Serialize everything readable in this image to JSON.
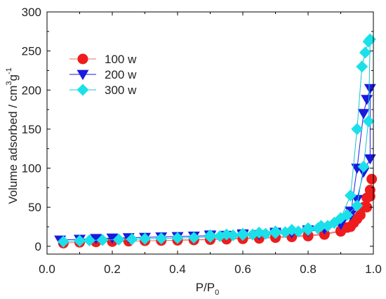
{
  "chart_data": {
    "type": "scatter",
    "xlabel": {
      "main": "P/P",
      "sub": "0"
    },
    "ylabel": {
      "main": "Volume adsorbed / cm",
      "sup1": "3",
      "mid": "g",
      "sup2": "-1"
    },
    "xlim": [
      0.0,
      1.0
    ],
    "ylim": [
      -10,
      300
    ],
    "xticks": [
      "0.0",
      "0.2",
      "0.4",
      "0.6",
      "0.8",
      "1.0"
    ],
    "yticks": [
      "0",
      "50",
      "100",
      "150",
      "200",
      "250",
      "300"
    ],
    "grid": false,
    "legend_position": "top-left",
    "series": [
      {
        "name": "100 w",
        "marker": "circle",
        "color": "#ee1c1c",
        "line_color": "#ee6b6b",
        "points": [
          [
            0.05,
            4
          ],
          [
            0.1,
            5
          ],
          [
            0.15,
            5.5
          ],
          [
            0.2,
            6
          ],
          [
            0.25,
            6.5
          ],
          [
            0.3,
            7
          ],
          [
            0.35,
            7.3
          ],
          [
            0.4,
            7.6
          ],
          [
            0.45,
            8
          ],
          [
            0.5,
            8.5
          ],
          [
            0.55,
            9
          ],
          [
            0.6,
            9.5
          ],
          [
            0.65,
            10
          ],
          [
            0.7,
            11
          ],
          [
            0.75,
            12
          ],
          [
            0.8,
            13
          ],
          [
            0.85,
            15
          ],
          [
            0.9,
            19
          ],
          [
            0.93,
            25
          ],
          [
            0.95,
            35
          ],
          [
            0.97,
            50
          ],
          [
            0.98,
            62
          ],
          [
            0.99,
            72
          ],
          [
            0.995,
            86
          ],
          [
            0.99,
            64
          ],
          [
            0.98,
            50
          ],
          [
            0.96,
            40
          ],
          [
            0.94,
            30
          ],
          [
            0.92,
            24
          ],
          [
            0.9,
            20
          ],
          [
            0.85,
            16
          ],
          [
            0.8,
            14
          ],
          [
            0.7,
            12
          ],
          [
            0.6,
            10.5
          ],
          [
            0.5,
            9
          ],
          [
            0.4,
            8
          ]
        ]
      },
      {
        "name": "200 w",
        "marker": "triangle-down",
        "color": "#1a1adf",
        "line_color": "#1a1adf",
        "points": [
          [
            0.04,
            8
          ],
          [
            0.1,
            9
          ],
          [
            0.15,
            10
          ],
          [
            0.2,
            10.5
          ],
          [
            0.25,
            11
          ],
          [
            0.3,
            11.5
          ],
          [
            0.35,
            12
          ],
          [
            0.4,
            12.5
          ],
          [
            0.45,
            13
          ],
          [
            0.5,
            13.5
          ],
          [
            0.55,
            14
          ],
          [
            0.6,
            14.5
          ],
          [
            0.65,
            15
          ],
          [
            0.7,
            16
          ],
          [
            0.75,
            17
          ],
          [
            0.8,
            19
          ],
          [
            0.85,
            22
          ],
          [
            0.9,
            28
          ],
          [
            0.93,
            40
          ],
          [
            0.95,
            100
          ],
          [
            0.97,
            170
          ],
          [
            0.98,
            188
          ],
          [
            0.99,
            202
          ],
          [
            0.99,
            112
          ],
          [
            0.97,
            95
          ],
          [
            0.95,
            60
          ],
          [
            0.93,
            45
          ],
          [
            0.9,
            30
          ],
          [
            0.85,
            24
          ],
          [
            0.8,
            21
          ],
          [
            0.7,
            18
          ],
          [
            0.6,
            16
          ],
          [
            0.5,
            14.5
          ]
        ]
      },
      {
        "name": "300 w",
        "marker": "diamond",
        "color": "#1be0ea",
        "line_color": "#16c4d4",
        "points": [
          [
            0.05,
            6
          ],
          [
            0.1,
            7
          ],
          [
            0.13,
            7.5
          ],
          [
            0.17,
            8
          ],
          [
            0.22,
            8.5
          ],
          [
            0.26,
            9
          ],
          [
            0.3,
            9.5
          ],
          [
            0.35,
            10
          ],
          [
            0.4,
            10.5
          ],
          [
            0.45,
            11
          ],
          [
            0.5,
            12
          ],
          [
            0.53,
            13
          ],
          [
            0.57,
            14
          ],
          [
            0.6,
            14.5
          ],
          [
            0.63,
            15
          ],
          [
            0.67,
            16
          ],
          [
            0.7,
            17
          ],
          [
            0.73,
            18
          ],
          [
            0.77,
            19
          ],
          [
            0.8,
            21
          ],
          [
            0.83,
            23
          ],
          [
            0.86,
            26
          ],
          [
            0.88,
            30
          ],
          [
            0.9,
            36
          ],
          [
            0.93,
            65
          ],
          [
            0.95,
            150
          ],
          [
            0.965,
            230
          ],
          [
            0.975,
            248
          ],
          [
            0.985,
            262
          ],
          [
            0.99,
            265
          ],
          [
            0.985,
            160
          ],
          [
            0.97,
            102
          ],
          [
            0.95,
            52
          ],
          [
            0.92,
            40
          ],
          [
            0.88,
            30
          ],
          [
            0.84,
            26
          ],
          [
            0.8,
            23
          ],
          [
            0.75,
            21
          ],
          [
            0.7,
            19
          ],
          [
            0.65,
            17.5
          ],
          [
            0.6,
            16
          ],
          [
            0.55,
            15
          ],
          [
            0.5,
            14
          ]
        ]
      }
    ]
  }
}
